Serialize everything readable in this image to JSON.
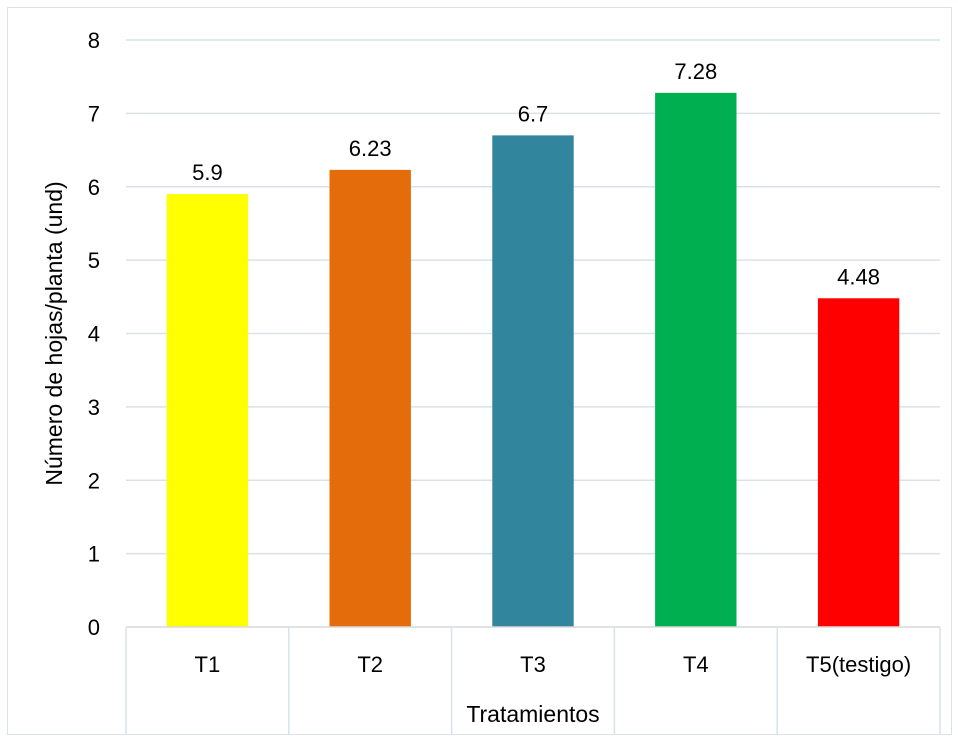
{
  "chart_data": {
    "type": "bar",
    "title": "",
    "xlabel": "Tratamientos",
    "ylabel": "Número de hojas/planta (und)",
    "categories": [
      "T1",
      "T2",
      "T3",
      "T4",
      "T5(testigo)"
    ],
    "values": [
      5.9,
      6.23,
      6.7,
      7.28,
      4.48
    ],
    "value_labels": [
      "5.9",
      "6.23",
      "6.7",
      "7.28",
      "4.48"
    ],
    "colors": [
      "#ffff00",
      "#e46c0a",
      "#31859c",
      "#00b050",
      "#ff0000"
    ],
    "ylim": [
      0,
      8
    ],
    "yticks": [
      "0",
      "1",
      "2",
      "3",
      "4",
      "5",
      "6",
      "7",
      "8"
    ],
    "grid": true,
    "legend": "none"
  }
}
